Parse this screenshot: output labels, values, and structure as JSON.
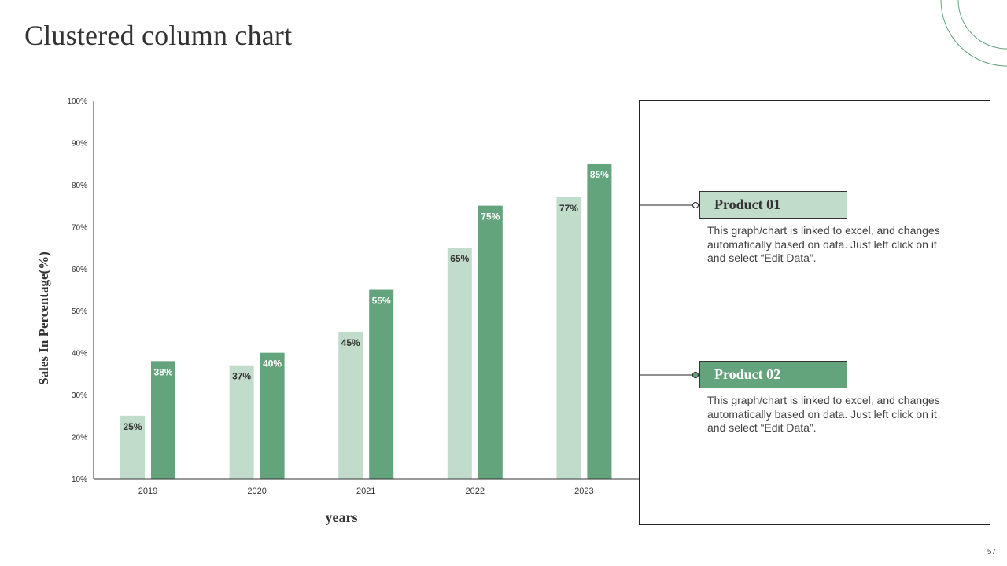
{
  "slide": {
    "title": "Clustered column chart",
    "page_number": "57"
  },
  "legend": {
    "product1": {
      "label": "Product 01",
      "description": "This graph/chart is linked to excel, and changes automatically based on data. Just left click on it and select “Edit Data”."
    },
    "product2": {
      "label": "Product 02",
      "description": "This graph/chart is linked to excel, and changes automatically based on data. Just left click on it and select “Edit Data”."
    }
  },
  "colors": {
    "product1": "#c2dccb",
    "product2": "#63a47c",
    "accent_circle": "#63a47c",
    "axis": "#333333"
  },
  "chart_data": {
    "type": "bar",
    "xlabel": "years",
    "ylabel": "Sales In Percentage(%)",
    "categories": [
      "2019",
      "2020",
      "2021",
      "2022",
      "2023"
    ],
    "ylim": [
      10,
      100
    ],
    "yticks": [
      "10%",
      "20%",
      "30%",
      "40%",
      "50%",
      "60%",
      "70%",
      "80%",
      "90%",
      "100%"
    ],
    "grid": false,
    "series": [
      {
        "name": "Product 01",
        "values": [
          25,
          37,
          45,
          65,
          77
        ],
        "labels": [
          "25%",
          "37%",
          "45%",
          "65%",
          "77%"
        ]
      },
      {
        "name": "Product 02",
        "values": [
          38,
          40,
          55,
          75,
          85
        ],
        "labels": [
          "38%",
          "40%",
          "55%",
          "75%",
          "85%"
        ]
      }
    ]
  }
}
